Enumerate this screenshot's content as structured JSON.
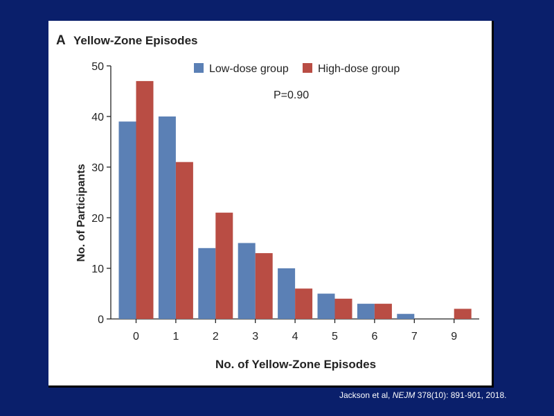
{
  "panel_letter": "A",
  "chart_data": {
    "type": "bar",
    "title": "Yellow-Zone Episodes",
    "xlabel": "No. of Yellow-Zone Episodes",
    "ylabel": "No. of Participants",
    "categories": [
      "0",
      "1",
      "2",
      "3",
      "4",
      "5",
      "6",
      "7",
      "9"
    ],
    "ylim": [
      0,
      50
    ],
    "yticks": [
      0,
      10,
      20,
      30,
      40,
      50
    ],
    "grid": false,
    "legend_position": "top",
    "annotation": "P=0.90",
    "series": [
      {
        "name": "Low-dose group",
        "color": "#5b80b5",
        "values": [
          39,
          40,
          14,
          15,
          10,
          5,
          3,
          1,
          0
        ]
      },
      {
        "name": "High-dose group",
        "color": "#b94d44",
        "values": [
          47,
          31,
          21,
          13,
          6,
          4,
          3,
          0,
          2
        ]
      }
    ]
  },
  "citation": {
    "authors": "Jackson et al, ",
    "journal": "NEJM",
    "details": " 378(10): 891-901, 2018."
  }
}
